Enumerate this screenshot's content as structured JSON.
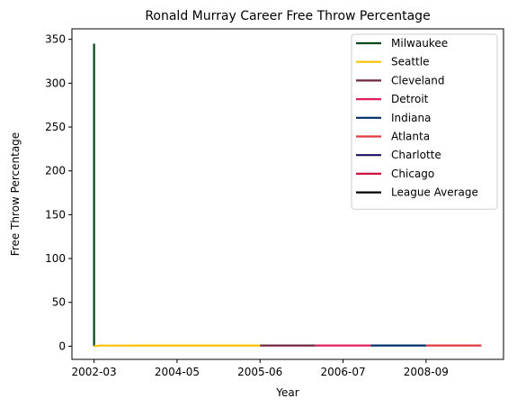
{
  "chart_data": {
    "type": "line",
    "title": "Ronald Murray Career Free Throw Percentage",
    "xlabel": "Year",
    "ylabel": "Free Throw Percentage",
    "ylim": [
      -15,
      362
    ],
    "xlim": [
      -0.4,
      7.4
    ],
    "yticks": [
      0,
      50,
      100,
      150,
      200,
      250,
      300,
      350
    ],
    "xticks": [
      {
        "label": "2002-03",
        "value": 0
      },
      {
        "label": "2004-05",
        "value": 1.5
      },
      {
        "label": "2005-06",
        "value": 3
      },
      {
        "label": "2006-07",
        "value": 4.5
      },
      {
        "label": "2008-09",
        "value": 6
      }
    ],
    "grid": false,
    "legend_position": "top-right",
    "series": [
      {
        "name": "Milwaukee",
        "color": "#00471B",
        "points": [
          [
            0,
            0.0
          ],
          [
            0,
            345.0
          ]
        ]
      },
      {
        "name": "Seattle",
        "color": "#FFC200",
        "points": [
          [
            0,
            0.0
          ],
          [
            0.1,
            0.73
          ],
          [
            1,
            0.8
          ],
          [
            2,
            0.8
          ],
          [
            3,
            0.8
          ]
        ]
      },
      {
        "name": "Cleveland",
        "color": "#6F263D",
        "points": [
          [
            3,
            0.8
          ],
          [
            4,
            0.79
          ]
        ]
      },
      {
        "name": "Detroit",
        "color": "#E01E5A",
        "points": [
          [
            4,
            0.79
          ],
          [
            5,
            0.78
          ]
        ]
      },
      {
        "name": "Indiana",
        "color": "#002D62",
        "points": [
          [
            5,
            0.78
          ],
          [
            6,
            0.8
          ]
        ]
      },
      {
        "name": "Atlanta",
        "color": "#E03A3E",
        "points": [
          [
            6,
            0.8
          ],
          [
            7,
            0.82
          ]
        ]
      },
      {
        "name": "Charlotte",
        "color": "#1D1160",
        "points": []
      },
      {
        "name": "Chicago",
        "color": "#CE1141",
        "points": []
      },
      {
        "name": "League Average",
        "color": "#000000",
        "points": []
      }
    ]
  }
}
